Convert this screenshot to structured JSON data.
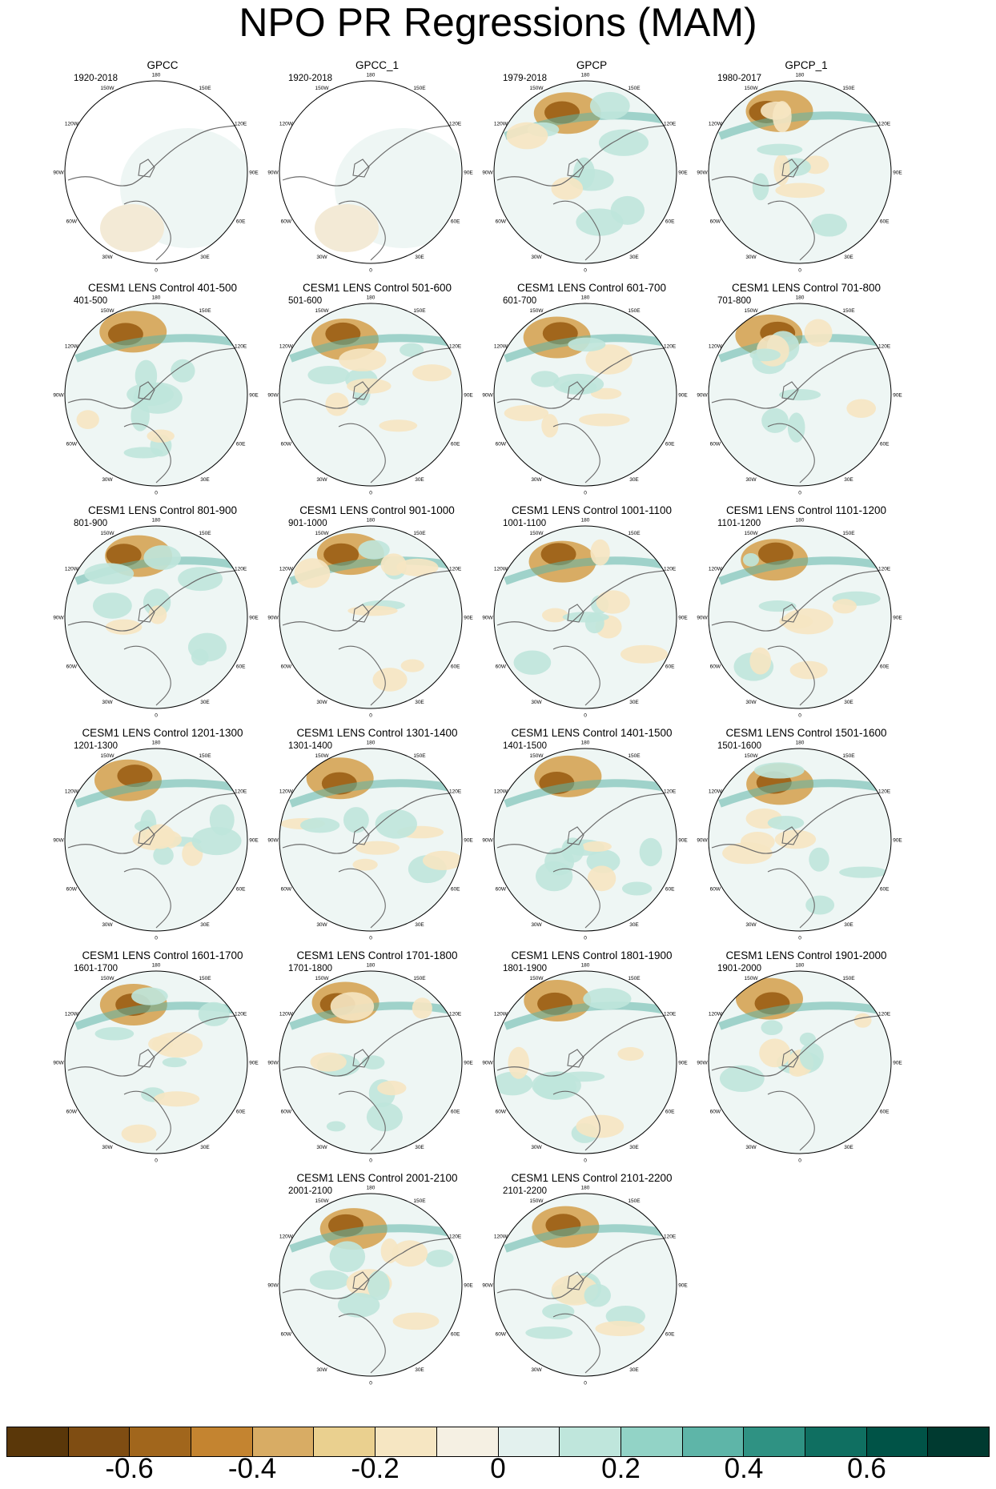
{
  "title": "NPO PR Regressions (MAM)",
  "panels": [
    {
      "title": "GPCC",
      "years": "1920-2018",
      "masked": true
    },
    {
      "title": "GPCC_1",
      "years": "1920-2018",
      "masked": true
    },
    {
      "title": "GPCP",
      "years": "1979-2018"
    },
    {
      "title": "GPCP_1",
      "years": "1980-2017"
    },
    {
      "title": "CESM1 LENS Control 401-500",
      "years": "401-500"
    },
    {
      "title": "CESM1 LENS Control 501-600",
      "years": "501-600"
    },
    {
      "title": "CESM1 LENS Control 601-700",
      "years": "601-700"
    },
    {
      "title": "CESM1 LENS Control 701-800",
      "years": "701-800"
    },
    {
      "title": "CESM1 LENS Control 801-900",
      "years": "801-900"
    },
    {
      "title": "CESM1 LENS Control 901-1000",
      "years": "901-1000"
    },
    {
      "title": "CESM1 LENS Control 1001-1100",
      "years": "1001-1100"
    },
    {
      "title": "CESM1 LENS Control 1101-1200",
      "years": "1101-1200"
    },
    {
      "title": "CESM1 LENS Control 1201-1300",
      "years": "1201-1300"
    },
    {
      "title": "CESM1 LENS Control 1301-1400",
      "years": "1301-1400"
    },
    {
      "title": "CESM1 LENS Control 1401-1500",
      "years": "1401-1500"
    },
    {
      "title": "CESM1 LENS Control 1501-1600",
      "years": "1501-1600"
    },
    {
      "title": "CESM1 LENS Control 1601-1700",
      "years": "1601-1700"
    },
    {
      "title": "CESM1 LENS Control 1701-1800",
      "years": "1701-1800"
    },
    {
      "title": "CESM1 LENS Control 1801-1900",
      "years": "1801-1900"
    },
    {
      "title": "CESM1 LENS Control 1901-2000",
      "years": "1901-2000"
    },
    {
      "title": "CESM1 LENS Control 2001-2100",
      "years": "2001-2100"
    },
    {
      "title": "CESM1 LENS Control 2101-2200",
      "years": "2101-2200"
    }
  ],
  "longitude_labels": [
    "180",
    "150E",
    "120E",
    "90E",
    "60E",
    "30E",
    "0",
    "30W",
    "60W",
    "90W",
    "120W",
    "150W"
  ],
  "colorbar": {
    "colors": [
      "#5a3709",
      "#7f4d12",
      "#a1661c",
      "#c48430",
      "#d8ac64",
      "#ead08f",
      "#f6e6c2",
      "#f5f0e3",
      "#e3f1ee",
      "#bfe6dc",
      "#92d3c6",
      "#5eb5a8",
      "#2f9283",
      "#0f6f61",
      "#005347",
      "#003a30"
    ],
    "tick_labels": [
      "-0.6",
      "-0.4",
      "-0.2",
      "0",
      "0.2",
      "0.4",
      "0.6"
    ],
    "tick_values": [
      -0.6,
      -0.4,
      -0.2,
      0,
      0.2,
      0.4,
      0.6
    ],
    "range": [
      -0.8,
      0.8
    ]
  }
}
